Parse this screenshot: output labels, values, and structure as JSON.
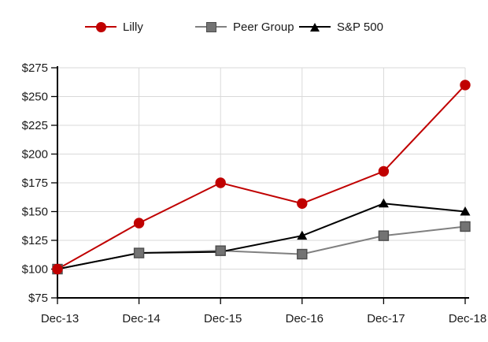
{
  "page": {
    "background": "#ffffff"
  },
  "legend": {
    "position": "top",
    "items": [
      {
        "label": "Lilly",
        "marker": "circle"
      },
      {
        "label": "Peer Group",
        "marker": "square"
      },
      {
        "label": "S&P 500",
        "marker": "triangle"
      }
    ]
  },
  "chart_data": {
    "type": "line",
    "title": "",
    "xlabel": "",
    "ylabel": "",
    "x": [
      "Dec-13",
      "Dec-14",
      "Dec-15",
      "Dec-16",
      "Dec-17",
      "Dec-18"
    ],
    "series": [
      {
        "name": "Lilly",
        "color": "#c00000",
        "marker": "circle",
        "marker_fill": "#c00000",
        "marker_border": "#c00000",
        "values": [
          100,
          140,
          175,
          157,
          185,
          260
        ]
      },
      {
        "name": "Peer Group",
        "color": "#808080",
        "marker": "square",
        "marker_fill": "#737373",
        "marker_border": "#4d4d4d",
        "values": [
          100,
          114,
          116,
          113,
          129,
          137
        ]
      },
      {
        "name": "S&P 500",
        "color": "#000000",
        "marker": "triangle",
        "marker_fill": "#000000",
        "marker_border": "#000000",
        "values": [
          100,
          114,
          115,
          129,
          157,
          150
        ]
      }
    ],
    "ylim": [
      75,
      275
    ],
    "ytick_step": 25,
    "ytick_prefix": "$",
    "y_tick_labels": [
      "$75",
      "$100",
      "$125",
      "$150",
      "$175",
      "$200",
      "$225",
      "$250",
      "$275"
    ],
    "grid": true,
    "gridline_color": "#d9d9d9",
    "axis_color": "#000000",
    "label_color": "#1a1a1a",
    "legend_position": "top"
  }
}
